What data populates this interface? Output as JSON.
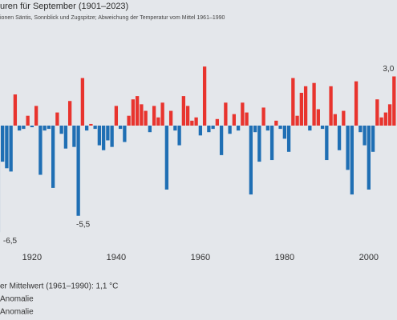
{
  "chart_data": {
    "type": "bar",
    "title": "uren für September (1901–2023)",
    "subtitle": "ionen Säntis, Sonnblick und Zugspitze; Abweichung der Temperatur vom Mittel 1961–1990",
    "x": [
      1912,
      1913,
      1914,
      1915,
      1916,
      1917,
      1918,
      1919,
      1920,
      1921,
      1922,
      1923,
      1924,
      1925,
      1926,
      1927,
      1928,
      1929,
      1930,
      1931,
      1932,
      1933,
      1934,
      1935,
      1936,
      1937,
      1938,
      1939,
      1940,
      1941,
      1942,
      1943,
      1944,
      1945,
      1946,
      1947,
      1948,
      1949,
      1950,
      1951,
      1952,
      1953,
      1954,
      1955,
      1956,
      1957,
      1958,
      1959,
      1960,
      1961,
      1962,
      1963,
      1964,
      1965,
      1966,
      1967,
      1968,
      1969,
      1970,
      1971,
      1972,
      1973,
      1974,
      1975,
      1976,
      1977,
      1978,
      1979,
      1980,
      1981,
      1982,
      1983,
      1984,
      1985,
      1986,
      1987,
      1988,
      1989,
      1990,
      1991,
      1992,
      1993,
      1994,
      1995,
      1996,
      1997,
      1998,
      1999,
      2000,
      2001,
      2002,
      2003,
      2004,
      2005,
      2006
    ],
    "values": [
      -6.5,
      -2.2,
      -2.6,
      -2.8,
      1.9,
      -0.3,
      -0.2,
      0.6,
      -0.1,
      1.2,
      -3.0,
      -0.3,
      -0.2,
      -3.8,
      0.8,
      -0.5,
      -1.4,
      1.5,
      -1.3,
      -5.5,
      2.9,
      -0.3,
      0.1,
      -0.2,
      -1.2,
      -1.5,
      -0.9,
      -1.3,
      1.2,
      -0.2,
      -1.0,
      0.6,
      1.6,
      1.8,
      1.3,
      0.9,
      -0.4,
      1.2,
      0.5,
      1.4,
      -3.9,
      0.9,
      -0.3,
      -1.2,
      1.8,
      1.2,
      0.3,
      0.5,
      -0.6,
      3.6,
      -0.4,
      -0.2,
      0.4,
      -1.8,
      1.4,
      -0.5,
      0.7,
      -0.3,
      1.4,
      0.8,
      -4.2,
      -0.4,
      -2.2,
      1.1,
      -0.3,
      -2.1,
      0.3,
      -0.2,
      -0.8,
      -1.6,
      2.9,
      0.6,
      2.0,
      2.4,
      -0.3,
      2.6,
      1.0,
      -0.2,
      -2.1,
      2.4,
      0.7,
      -1.5,
      0.9,
      -2.7,
      -4.2,
      2.7,
      -0.4,
      -1.2,
      -3.9,
      -1.6,
      1.6,
      0.5,
      0.8,
      1.3,
      3.0
    ],
    "colors": {
      "positive": "#e8342e",
      "negative": "#1f6fb4"
    },
    "xlim": [
      1912.4,
      2006.7
    ],
    "xticks": [
      1920,
      1940,
      1960,
      1980,
      2000
    ],
    "ylim": [
      -7,
      4
    ],
    "annotations": [
      {
        "x": 1912,
        "text": "-6,5"
      },
      {
        "x": 1931,
        "text": "-5,5"
      },
      {
        "x": 2006,
        "text": "3,0"
      }
    ],
    "footer": [
      "er Mittelwert (1961–1990): 1,1 °C",
      "Anomalie",
      "Anomalie"
    ]
  }
}
